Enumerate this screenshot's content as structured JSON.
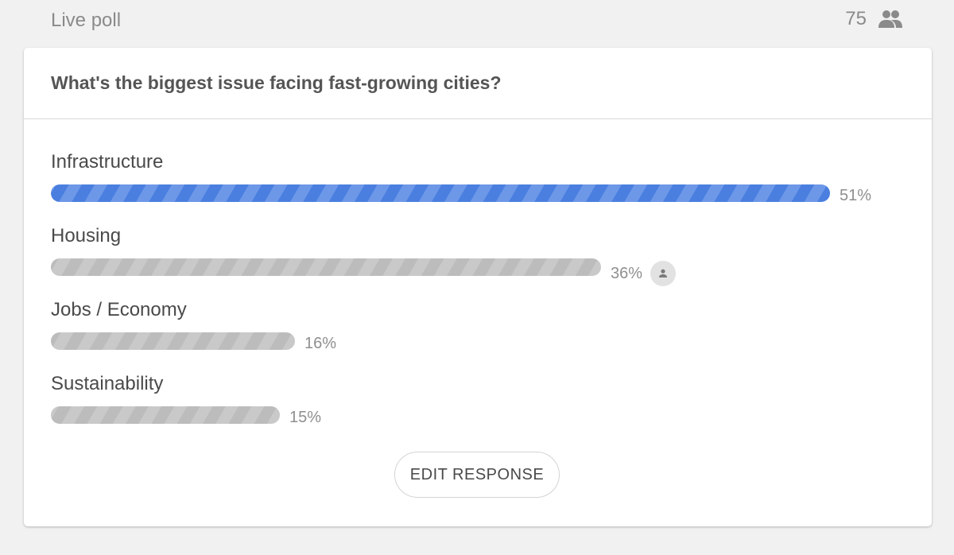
{
  "header": {
    "title": "Live poll",
    "participant_count": "75",
    "participants_icon": "people-icon"
  },
  "poll": {
    "question": "What's the biggest issue facing fast-growing cities?",
    "options": [
      {
        "label": "Infrastructure",
        "percent": 51,
        "percent_text": "51%",
        "leading": true
      },
      {
        "label": "Housing",
        "percent": 36,
        "percent_text": "36%",
        "leading": false,
        "selected_by_user": true,
        "selected_icon": "person-icon"
      },
      {
        "label": "Jobs / Economy",
        "percent": 16,
        "percent_text": "16%",
        "leading": false
      },
      {
        "label": "Sustainability",
        "percent": 15,
        "percent_text": "15%",
        "leading": false
      }
    ],
    "edit_button_label": "EDIT RESPONSE"
  },
  "colors": {
    "leading_bar": "#4a7fe0",
    "other_bar": "#c9c9c9",
    "background": "#f1f1f1"
  }
}
